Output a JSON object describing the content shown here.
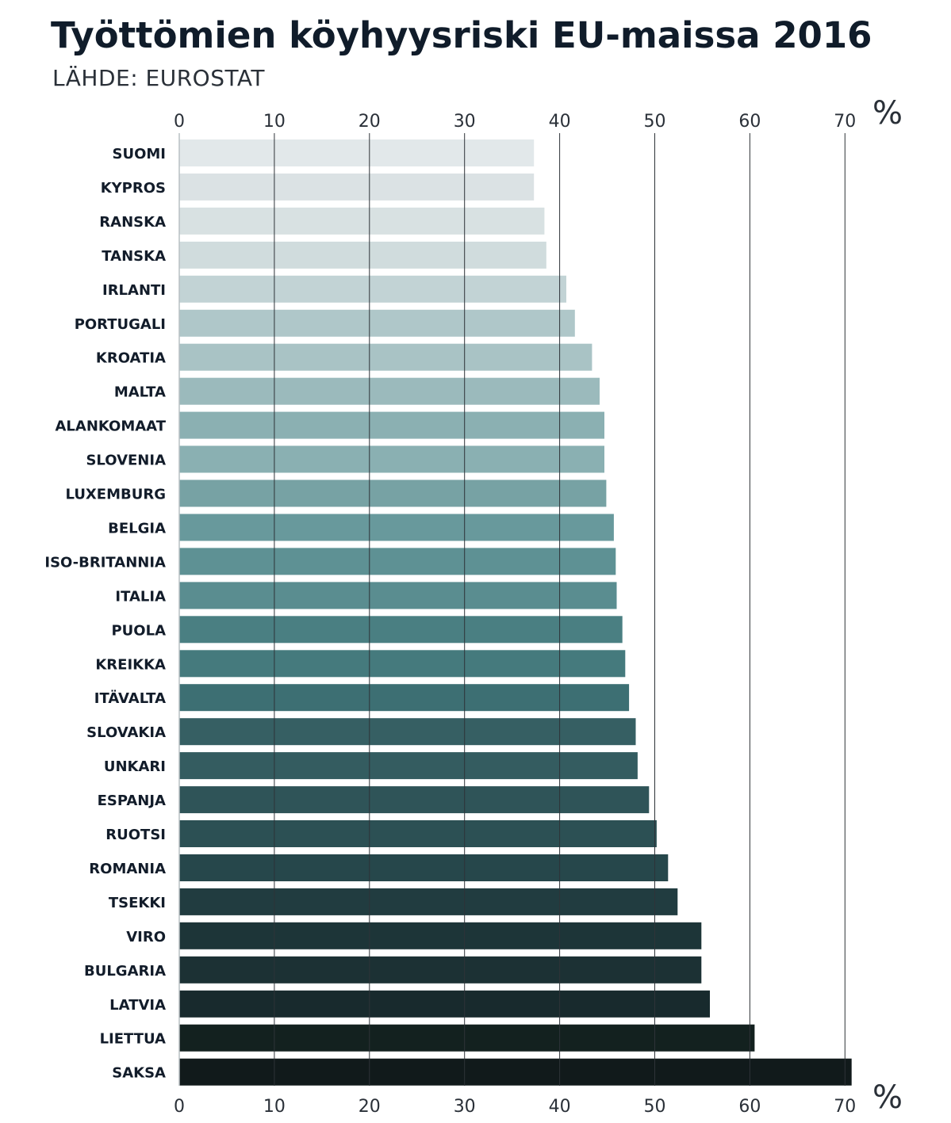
{
  "chart_data": {
    "type": "bar",
    "orientation": "horizontal",
    "title": "Työttömien köyhyysriski EU-maissa 2016",
    "subtitle": "LÄHDE: EUROSTAT",
    "unit_label": "%",
    "xlim": [
      0,
      70
    ],
    "xticks": [
      0,
      10,
      20,
      30,
      40,
      50,
      60,
      70
    ],
    "xtick_labels": [
      "0",
      "10",
      "20",
      "30",
      "40",
      "50",
      "60",
      "70"
    ],
    "grid": true,
    "axis_labels_position": "top and bottom",
    "categories": [
      "SUOMI",
      "KYPROS",
      "RANSKA",
      "TANSKA",
      "IRLANTI",
      "PORTUGALI",
      "KROATIA",
      "MALTA",
      "ALANKOMAAT",
      "SLOVENIA",
      "LUXEMBURG",
      "BELGIA",
      "ISO-BRITANNIA",
      "ITALIA",
      "PUOLA",
      "KREIKKA",
      "ITÄVALTA",
      "SLOVAKIA",
      "UNKARI",
      "ESPANJA",
      "RUOTSI",
      "ROMANIA",
      "TSEKKI",
      "VIRO",
      "BULGARIA",
      "LATVIA",
      "LIETTUA",
      "SAKSA"
    ],
    "values": [
      37.3,
      37.3,
      38.4,
      38.6,
      40.7,
      41.6,
      43.4,
      44.2,
      44.7,
      44.7,
      44.9,
      45.7,
      45.9,
      46.0,
      46.6,
      46.9,
      47.3,
      48.0,
      48.2,
      49.4,
      50.2,
      51.4,
      52.4,
      54.9,
      54.9,
      55.8,
      60.5,
      70.7
    ],
    "colors": [
      "#e2e8ea",
      "#dbe2e4",
      "#d8e1e2",
      "#d0dcdd",
      "#c2d3d5",
      "#afc7c9",
      "#a9c3c5",
      "#9bbabc",
      "#8bb0b2",
      "#8ab0b2",
      "#77a2a4",
      "#68999c",
      "#5e9194",
      "#5a8d90",
      "#4a7f82",
      "#457a7d",
      "#3d6f73",
      "#365f63",
      "#345c60",
      "#2f5458",
      "#2c5054",
      "#26474b",
      "#213c40",
      "#1d3538",
      "#1c3134",
      "#182a2d",
      "#13211f",
      "#111a1b"
    ]
  }
}
